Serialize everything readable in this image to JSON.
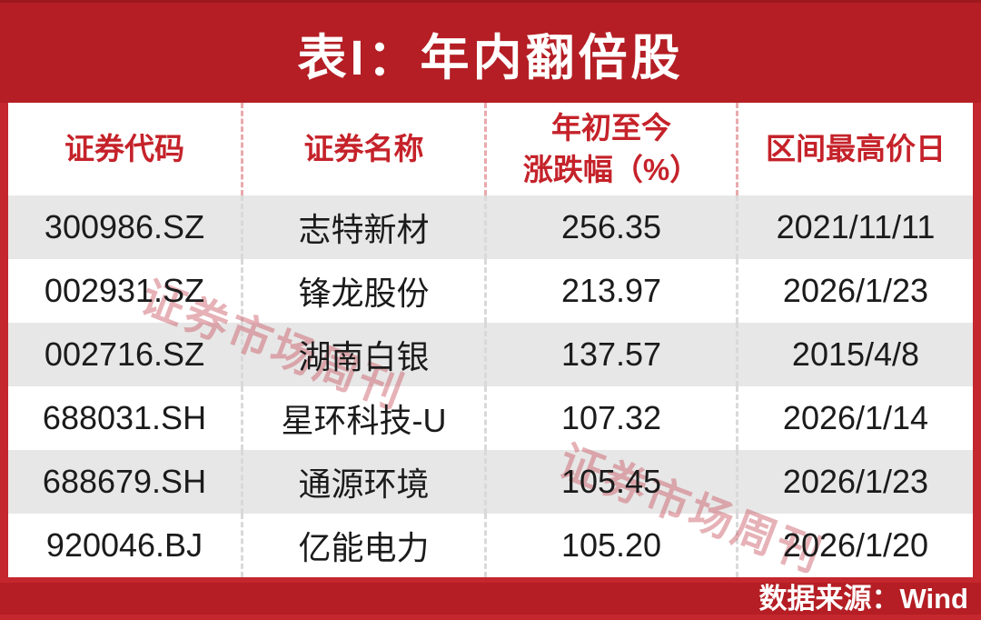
{
  "title": "表I：年内翻倍股",
  "watermark": {
    "text": "证券市场周刊"
  },
  "footer": {
    "source_label": "数据来源：Wind"
  },
  "colors": {
    "dark_red": "#b41e24",
    "bright_red_frame": "#c4272d",
    "header_text_red": "#c5222a",
    "row_alt_gray": "#e7e7e7",
    "watermark_pink": "#c7545f"
  },
  "chart_data": {
    "type": "table",
    "title": "表I：年内翻倍股",
    "columns": [
      {
        "key": "code",
        "lines": [
          "证券代码"
        ]
      },
      {
        "key": "name",
        "lines": [
          "证券名称"
        ]
      },
      {
        "key": "change",
        "lines": [
          "年初至今",
          "涨跌幅（%）"
        ]
      },
      {
        "key": "high_date",
        "lines": [
          "区间最高价日"
        ]
      }
    ],
    "rows": [
      {
        "code": "300986.SZ",
        "name": "志特新材",
        "change": "256.35",
        "high_date": "2021/11/11"
      },
      {
        "code": "002931.SZ",
        "name": "锋龙股份",
        "change": "213.97",
        "high_date": "2026/1/23"
      },
      {
        "code": "002716.SZ",
        "name": "湖南白银",
        "change": "137.57",
        "high_date": "2015/4/8"
      },
      {
        "code": "688031.SH",
        "name": "星环科技-U",
        "change": "107.32",
        "high_date": "2026/1/14"
      },
      {
        "code": "688679.SH",
        "name": "通源环境",
        "change": "105.45",
        "high_date": "2026/1/23"
      },
      {
        "code": "920046.BJ",
        "name": "亿能电力",
        "change": "105.20",
        "high_date": "2026/1/20"
      }
    ],
    "source": "数据来源：Wind",
    "layout": {
      "row_striping": "gray-white-alternating",
      "column_separators": "dashed"
    }
  }
}
